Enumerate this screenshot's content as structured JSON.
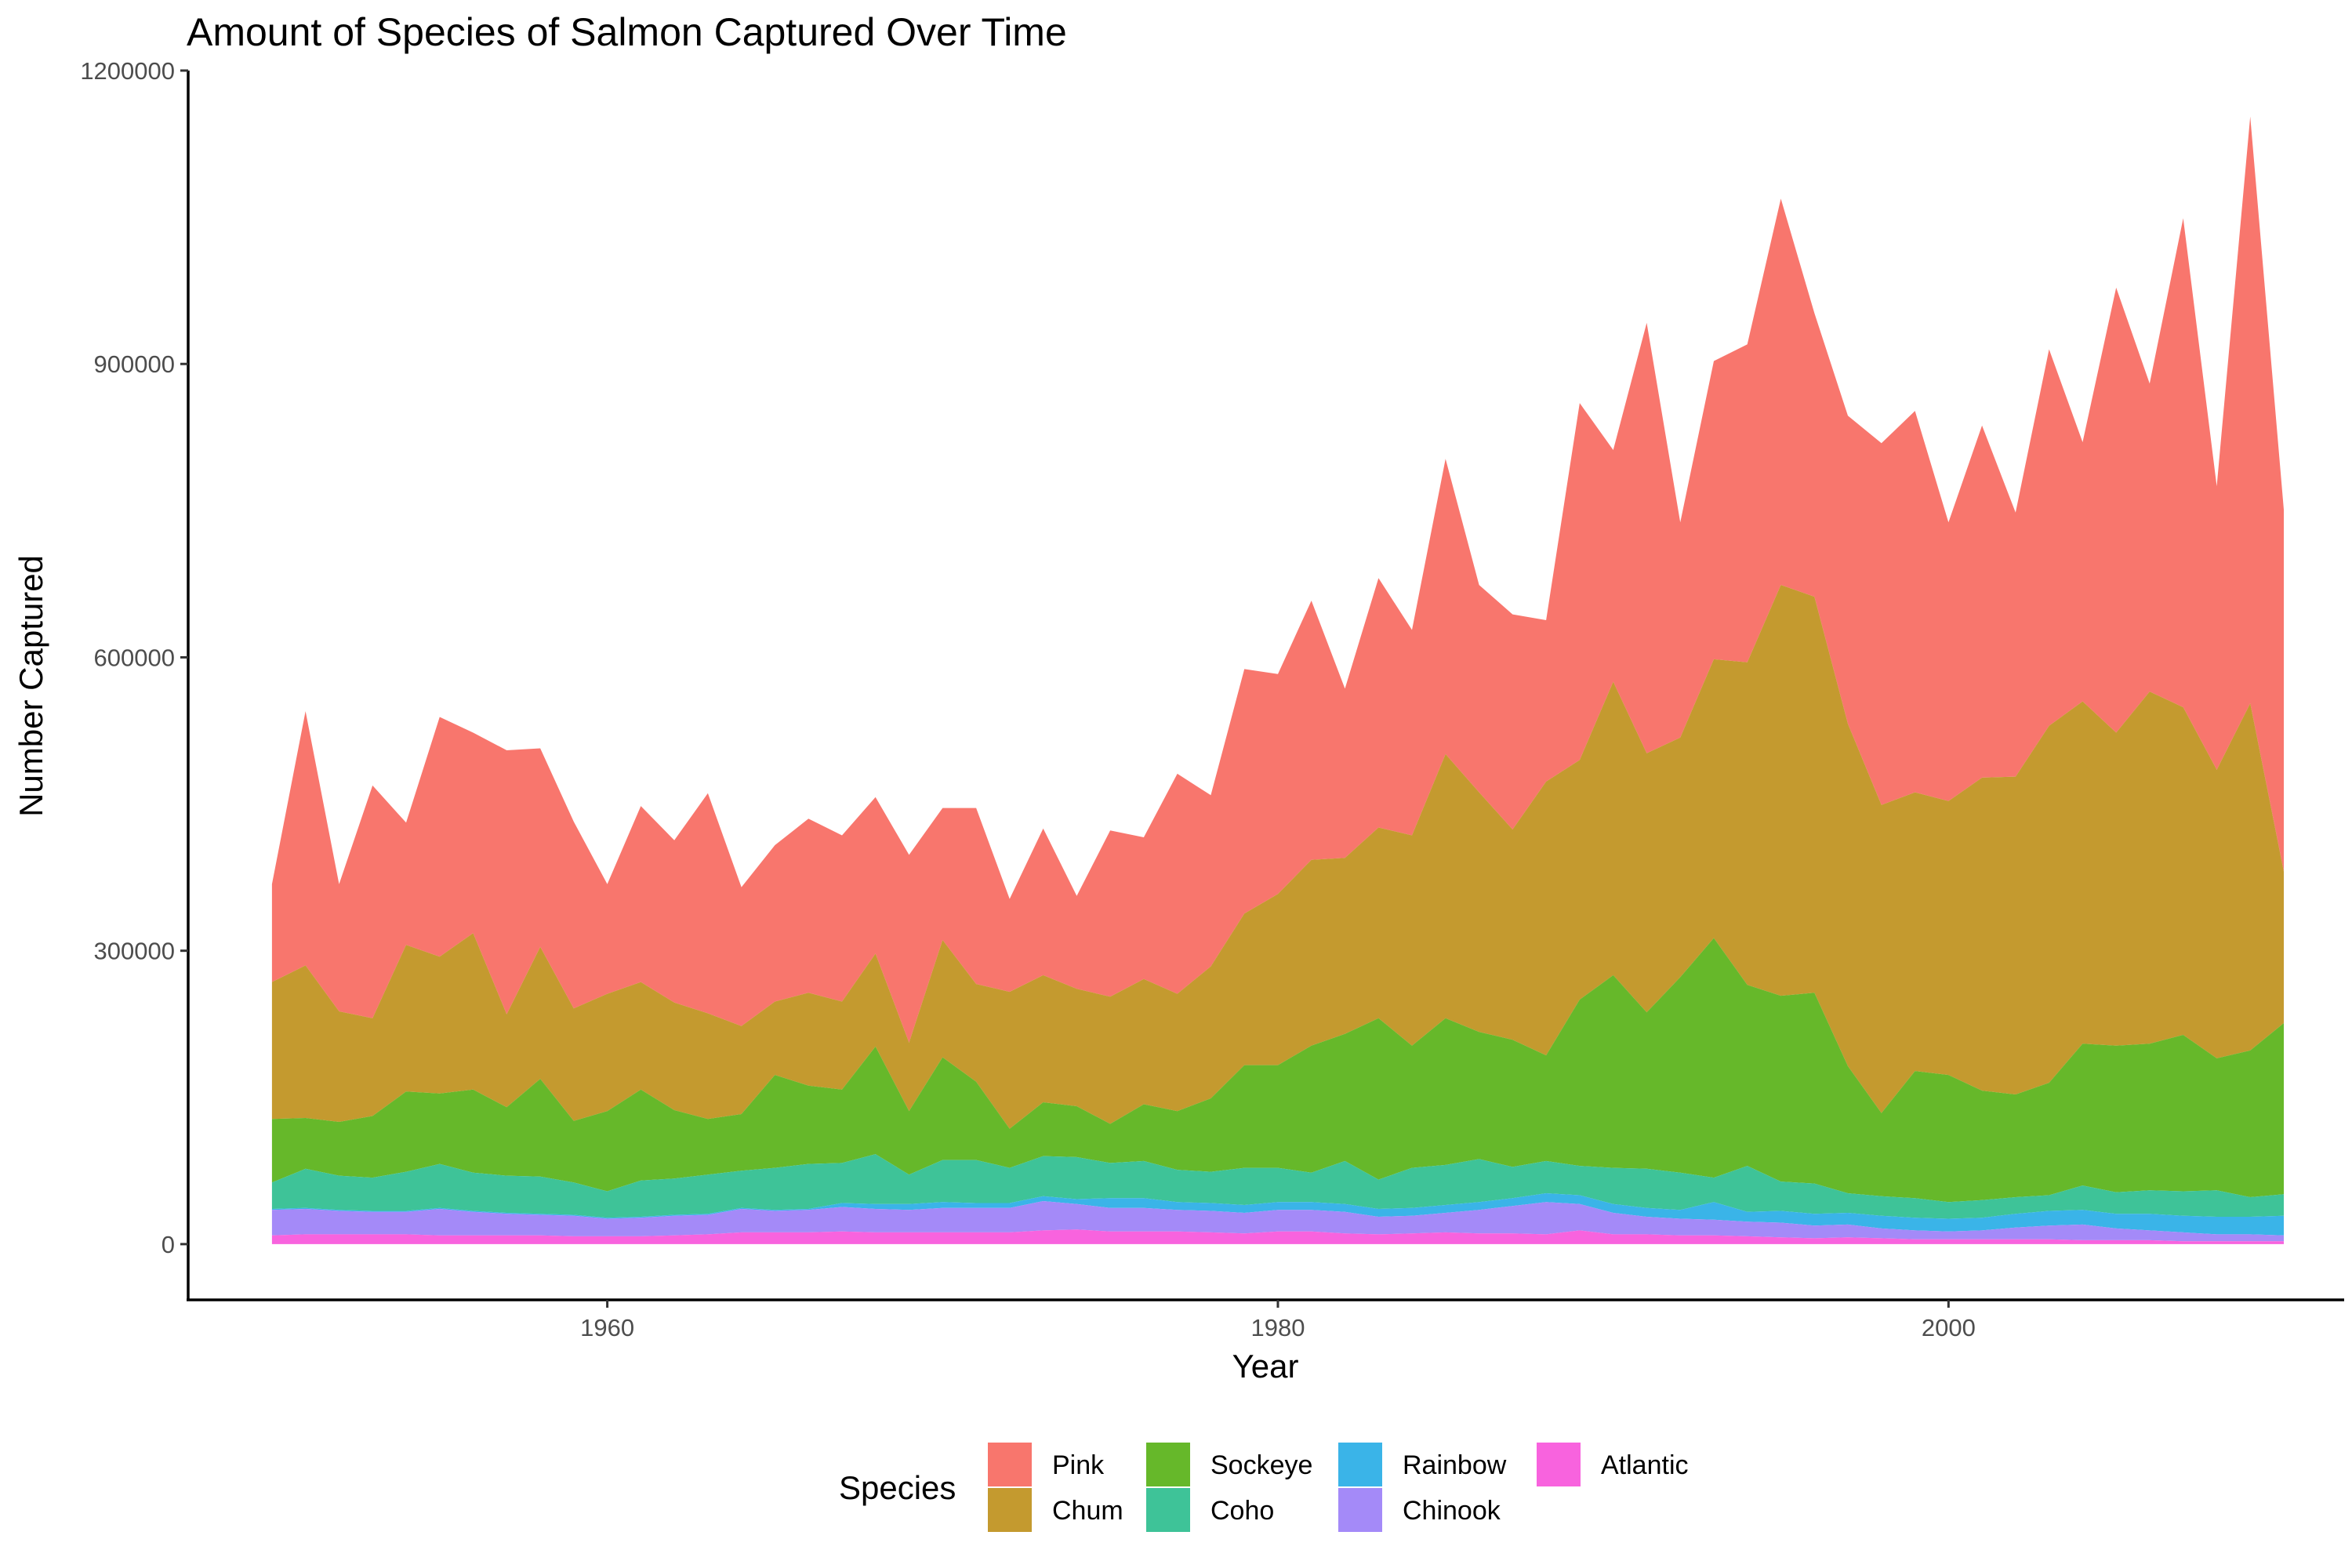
{
  "chart_data": {
    "type": "area",
    "stacked": true,
    "title": "Amount of Species of Salmon Captured Over Time",
    "xlabel": "Year",
    "ylabel": "Number Captured",
    "xlim": [
      1947.5,
      2011.8
    ],
    "ylim": [
      -57000,
      1200000
    ],
    "x_ticks": [
      1960,
      1980,
      2000
    ],
    "x_tick_labels": [
      "1960",
      "1980",
      "2000"
    ],
    "y_ticks": [
      0,
      300000,
      600000,
      900000,
      1200000
    ],
    "y_tick_labels": [
      "0",
      "300000",
      "600000",
      "900000",
      "1200000"
    ],
    "grid": false,
    "legend": {
      "title": "Species",
      "position": "bottom",
      "entries": [
        "Pink",
        "Chum",
        "Sockeye",
        "Coho",
        "Rainbow",
        "Chinook",
        "Atlantic"
      ]
    },
    "colors": {
      "Pink": "#F8766D",
      "Chum": "#C49A2F",
      "Sockeye": "#66B82A",
      "Coho": "#3EC398",
      "Rainbow": "#3AB4E8",
      "Chinook": "#A48AF8",
      "Atlantic": "#F863DE"
    },
    "x": [
      1950,
      1951,
      1952,
      1953,
      1954,
      1955,
      1956,
      1957,
      1958,
      1959,
      1960,
      1961,
      1962,
      1963,
      1964,
      1965,
      1966,
      1967,
      1968,
      1969,
      1970,
      1971,
      1972,
      1973,
      1974,
      1975,
      1976,
      1977,
      1978,
      1979,
      1980,
      1981,
      1982,
      1983,
      1984,
      1985,
      1986,
      1987,
      1988,
      1989,
      1990,
      1991,
      1992,
      1993,
      1994,
      1995,
      1996,
      1997,
      1998,
      1999,
      2000,
      2001,
      2002,
      2003,
      2004,
      2005,
      2006,
      2007,
      2008,
      2009,
      2010
    ],
    "series": [
      {
        "name": "Atlantic",
        "values": [
          9000,
          10000,
          10000,
          10000,
          10000,
          9000,
          9000,
          9000,
          9000,
          8000,
          8000,
          8000,
          9000,
          10000,
          12000,
          12000,
          12000,
          13000,
          12000,
          12000,
          12000,
          12000,
          12000,
          14000,
          15000,
          13000,
          13000,
          13000,
          12000,
          11000,
          13000,
          13000,
          11000,
          10000,
          11000,
          12000,
          11000,
          11000,
          10000,
          14000,
          10000,
          10000,
          9000,
          9000,
          8000,
          7000,
          6000,
          7000,
          6000,
          5000,
          5000,
          5000,
          5000,
          5000,
          4000,
          4000,
          4000,
          3000,
          3000,
          3000,
          3000
        ]
      },
      {
        "name": "Chinook",
        "values": [
          26000,
          26000,
          24000,
          23000,
          23000,
          27000,
          24000,
          22000,
          21000,
          21000,
          18000,
          19000,
          20000,
          20000,
          24000,
          22000,
          23000,
          25000,
          24000,
          23000,
          25000,
          25000,
          25000,
          30000,
          26000,
          24000,
          24000,
          22000,
          22000,
          21000,
          22000,
          22000,
          22000,
          18000,
          18000,
          20000,
          24000,
          28000,
          33000,
          27000,
          22000,
          18000,
          17000,
          16000,
          15000,
          15000,
          13000,
          13000,
          10000,
          9000,
          8000,
          9000,
          12000,
          14000,
          16000,
          12000,
          10000,
          9000,
          7000,
          7000,
          6000
        ]
      },
      {
        "name": "Rainbow",
        "values": [
          1000,
          1000,
          1000,
          1000,
          1000,
          1000,
          1000,
          1000,
          1000,
          1000,
          1000,
          1000,
          1000,
          1000,
          1000,
          1000,
          1000,
          4000,
          5000,
          6000,
          6000,
          5000,
          5000,
          5000,
          5000,
          10000,
          10000,
          8000,
          8000,
          8000,
          8000,
          8000,
          8000,
          8000,
          8000,
          8000,
          8000,
          8000,
          9000,
          9000,
          9000,
          9000,
          9000,
          18000,
          10000,
          12000,
          12000,
          12000,
          13000,
          13000,
          13000,
          13000,
          14000,
          15000,
          15000,
          15000,
          17000,
          17000,
          18000,
          18000,
          20000
        ]
      },
      {
        "name": "Coho",
        "values": [
          27000,
          40000,
          35000,
          34000,
          40000,
          45000,
          39000,
          38000,
          38000,
          33000,
          27000,
          37000,
          37000,
          40000,
          38000,
          43000,
          46000,
          41000,
          51000,
          30000,
          43000,
          44000,
          36000,
          41000,
          43000,
          36000,
          38000,
          33000,
          32000,
          38000,
          35000,
          30000,
          44000,
          30000,
          41000,
          41000,
          44000,
          32000,
          33000,
          30000,
          37000,
          40000,
          38000,
          25000,
          47000,
          30000,
          31000,
          20000,
          20000,
          20000,
          17000,
          18000,
          17000,
          16000,
          25000,
          22000,
          24000,
          25000,
          27000,
          20000,
          22000
        ]
      },
      {
        "name": "Sockeye",
        "values": [
          65000,
          52000,
          55000,
          63000,
          82000,
          72000,
          85000,
          70000,
          100000,
          63000,
          82000,
          93000,
          70000,
          57000,
          58000,
          95000,
          80000,
          75000,
          110000,
          65000,
          105000,
          80000,
          40000,
          55000,
          52000,
          40000,
          58000,
          60000,
          75000,
          105000,
          105000,
          130000,
          130000,
          165000,
          125000,
          150000,
          130000,
          130000,
          108000,
          170000,
          197000,
          160000,
          200000,
          245000,
          185000,
          190000,
          195000,
          130000,
          85000,
          130000,
          130000,
          112000,
          105000,
          115000,
          145000,
          150000,
          150000,
          160000,
          135000,
          150000,
          175000
        ]
      },
      {
        "name": "Chum",
        "values": [
          140000,
          156000,
          113000,
          100000,
          150000,
          140000,
          160000,
          95000,
          135000,
          115000,
          120000,
          110000,
          110000,
          108000,
          90000,
          75000,
          95000,
          90000,
          95000,
          70000,
          120000,
          100000,
          140000,
          130000,
          120000,
          130000,
          128000,
          120000,
          135000,
          155000,
          175000,
          190000,
          180000,
          195000,
          215000,
          270000,
          245000,
          215000,
          280000,
          245000,
          300000,
          265000,
          245000,
          285000,
          330000,
          420000,
          405000,
          350000,
          315000,
          285000,
          280000,
          320000,
          325000,
          365000,
          350000,
          320000,
          360000,
          335000,
          295000,
          355000,
          155000
        ]
      },
      {
        "name": "Pink",
        "values": [
          100000,
          260000,
          130000,
          238000,
          125000,
          245000,
          205000,
          270000,
          203000,
          191000,
          112000,
          180000,
          166000,
          225000,
          142000,
          160000,
          178000,
          170000,
          160000,
          192000,
          135000,
          180000,
          95000,
          150000,
          95000,
          170000,
          145000,
          225000,
          175000,
          250000,
          225000,
          265000,
          173000,
          255000,
          210000,
          302000,
          212000,
          220000,
          165000,
          365000,
          237000,
          440000,
          220000,
          305000,
          325000,
          395000,
          290000,
          315000,
          370000,
          390000,
          285000,
          360000,
          270000,
          385000,
          265000,
          455000,
          315000,
          500000,
          290000,
          600000,
          370000
        ]
      }
    ]
  }
}
